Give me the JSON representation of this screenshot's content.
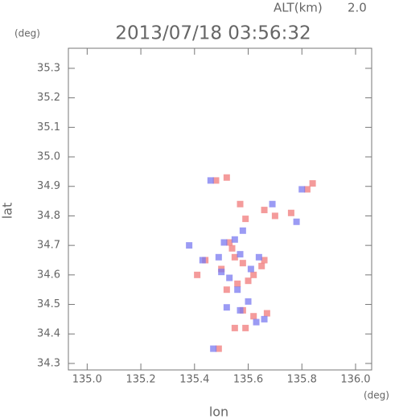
{
  "chart_data": {
    "type": "scatter",
    "title": "2013/07/18 03:56:32",
    "alt_label": "ALT(km)",
    "alt_value": "2.0",
    "y_unit": "(deg)",
    "x_unit": "(deg)",
    "x_label": "lon",
    "y_label": "lat",
    "xlim": [
      134.93,
      136.06
    ],
    "ylim": [
      34.278,
      35.368
    ],
    "xticks": [
      {
        "value": 135,
        "label": "135.0"
      },
      135.2,
      135.4,
      135.6,
      135.8,
      {
        "value": 136,
        "label": "136.0"
      }
    ],
    "yticks": [
      34.3,
      34.4,
      34.5,
      34.6,
      34.7,
      34.8,
      34.9,
      {
        "value": 35,
        "label": "35.0"
      },
      35.1,
      35.2,
      35.3
    ],
    "series": [
      {
        "color": "#f07a7a",
        "x": [
          135.48,
          135.52,
          135.57,
          135.59,
          135.66,
          135.7,
          135.76,
          135.82,
          135.84,
          135.44,
          135.5,
          135.55,
          135.58,
          135.62,
          135.6,
          135.52,
          135.56,
          135.65,
          135.54,
          135.58,
          135.67,
          135.55,
          135.59,
          135.62,
          135.49,
          135.41,
          135.66,
          135.53
        ],
        "values": [
          34.92,
          34.93,
          34.84,
          34.79,
          34.82,
          34.8,
          34.81,
          34.89,
          34.91,
          34.65,
          34.62,
          34.66,
          34.64,
          34.6,
          34.58,
          34.55,
          34.57,
          34.63,
          34.69,
          34.48,
          34.47,
          34.42,
          34.42,
          34.46,
          34.35,
          34.6,
          34.65,
          34.71
        ]
      },
      {
        "color": "#7a7af0",
        "x": [
          135.46,
          135.43,
          135.51,
          135.55,
          135.5,
          135.53,
          135.57,
          135.61,
          135.64,
          135.56,
          135.52,
          135.57,
          135.6,
          135.66,
          135.63,
          135.38,
          135.78,
          135.8,
          135.69,
          135.47,
          135.58,
          135.49
        ],
        "values": [
          34.92,
          34.65,
          34.71,
          34.72,
          34.61,
          34.59,
          34.67,
          34.62,
          34.66,
          34.55,
          34.49,
          34.48,
          34.51,
          34.45,
          34.44,
          34.7,
          34.78,
          34.89,
          34.84,
          34.35,
          34.75,
          34.66
        ]
      }
    ]
  }
}
